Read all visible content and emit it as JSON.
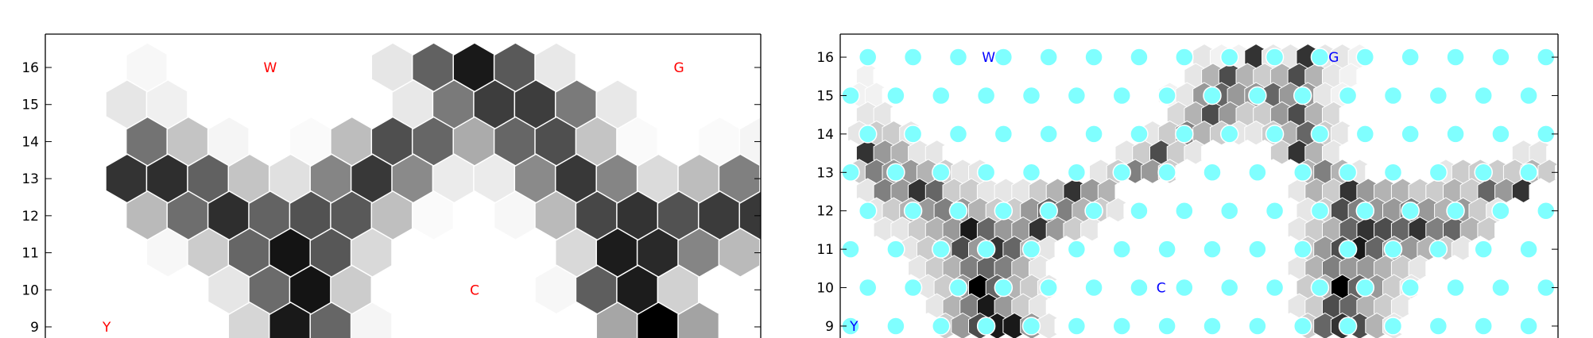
{
  "chart_data": [
    {
      "type": "heatmap",
      "title": "",
      "xlabel": "",
      "ylabel": "",
      "ylim": [
        8.4,
        16.9
      ],
      "y_ticks": [
        "9",
        "10",
        "11",
        "12",
        "13",
        "14",
        "15",
        "16"
      ],
      "grid": false,
      "colormap": "gray_r",
      "annotation_color": "#ff0000",
      "annotations": [
        {
          "text": "W",
          "x": 5.5,
          "y": 16
        },
        {
          "text": "G",
          "x": 15.5,
          "y": 16
        },
        {
          "text": "C",
          "x": 10.5,
          "y": 10
        },
        {
          "text": "Y",
          "x": 1.5,
          "y": 9
        }
      ],
      "x_start": 1,
      "x_step": 1,
      "rows": [
        {
          "y": 16,
          "x_offset": 0.5,
          "values": [
            0.0,
            0.03,
            0.0,
            0.0,
            0.0,
            0.0,
            0.0,
            0.1,
            0.62,
            0.9,
            0.65,
            0.09,
            0.0,
            0.0,
            0.0,
            0.0,
            0.0
          ]
        },
        {
          "y": 15,
          "x_offset": 0.0,
          "values": [
            0.0,
            0.1,
            0.06,
            0.0,
            0.0,
            0.0,
            0.0,
            0.0,
            0.09,
            0.52,
            0.76,
            0.76,
            0.52,
            0.09,
            0.0,
            0.0,
            0.0,
            0.0
          ]
        },
        {
          "y": 14,
          "x_offset": 0.5,
          "values": [
            0.0,
            0.55,
            0.23,
            0.04,
            0.0,
            0.02,
            0.26,
            0.69,
            0.6,
            0.33,
            0.6,
            0.69,
            0.23,
            0.02,
            0.0,
            0.02,
            0.04
          ]
        },
        {
          "y": 13,
          "x_offset": 0.0,
          "values": [
            0.0,
            0.8,
            0.82,
            0.62,
            0.23,
            0.12,
            0.48,
            0.78,
            0.46,
            0.08,
            0.08,
            0.46,
            0.78,
            0.48,
            0.14,
            0.26,
            0.5,
            0.0
          ]
        },
        {
          "y": 12,
          "x_offset": 0.5,
          "values": [
            0.0,
            0.27,
            0.57,
            0.82,
            0.61,
            0.68,
            0.65,
            0.25,
            0.02,
            0.0,
            0.03,
            0.27,
            0.72,
            0.8,
            0.68,
            0.77,
            0.78
          ]
        },
        {
          "y": 11,
          "x_offset": 0.0,
          "values": [
            0.0,
            0.0,
            0.03,
            0.2,
            0.6,
            0.92,
            0.66,
            0.15,
            0.0,
            0.0,
            0.0,
            0.0,
            0.15,
            0.89,
            0.84,
            0.48,
            0.27,
            0.0
          ]
        },
        {
          "y": 10,
          "x_offset": 0.5,
          "values": [
            0.0,
            0.0,
            0.0,
            0.1,
            0.58,
            0.92,
            0.2,
            0.0,
            0.0,
            0.0,
            0.0,
            0.03,
            0.63,
            0.89,
            0.18,
            0.0,
            0.0
          ]
        },
        {
          "y": 9,
          "x_offset": 0.0,
          "values": [
            0.0,
            0.0,
            0.0,
            0.0,
            0.16,
            0.9,
            0.6,
            0.04,
            0.0,
            0.0,
            0.0,
            0.0,
            0.0,
            0.35,
            1.0,
            0.36,
            0.0,
            0.0
          ]
        }
      ]
    },
    {
      "type": "heatmap",
      "title": "",
      "xlabel": "",
      "ylabel": "",
      "ylim": [
        8.4,
        16.6
      ],
      "y_ticks": [
        "9",
        "10",
        "11",
        "12",
        "13",
        "14",
        "15",
        "16"
      ],
      "grid": false,
      "colormap": "gray_r",
      "annotation_color": "#0000ff",
      "marker_color": "#7fffff",
      "annotations": [
        {
          "text": "W",
          "x": 4,
          "y": 16
        },
        {
          "text": "G",
          "x": 14,
          "y": 16
        },
        {
          "text": "C",
          "x": 9,
          "y": 10
        },
        {
          "text": "Y",
          "x": 0.1,
          "y": 9
        }
      ],
      "x_start": 0,
      "x_step": 0.5,
      "hex_rows_per_unit": 2,
      "rows": [
        {
          "y": 16.0,
          "x_offset": 0.25,
          "values": [
            0,
            0,
            0,
            0,
            0,
            0,
            0,
            0,
            0,
            0,
            0,
            0,
            0,
            0,
            0,
            0,
            0,
            0,
            0,
            0,
            0.1,
            0.05,
            0.05,
            0.8,
            0.1,
            0.1,
            0.8,
            0.1,
            0.1,
            0.05,
            0,
            0,
            0,
            0,
            0,
            0,
            0,
            0,
            0,
            0,
            0,
            0,
            0
          ]
        },
        {
          "y": 15.5,
          "x_offset": 0.0,
          "values": [
            0,
            0.05,
            0,
            0,
            0,
            0,
            0,
            0,
            0,
            0,
            0,
            0,
            0,
            0,
            0,
            0,
            0,
            0,
            0,
            0,
            0.1,
            0.3,
            0.7,
            0.3,
            0.2,
            0.3,
            0.7,
            0.3,
            0.1,
            0.05,
            0,
            0,
            0,
            0,
            0,
            0,
            0,
            0,
            0,
            0,
            0,
            0,
            0
          ]
        },
        {
          "y": 15.0,
          "x_offset": 0.25,
          "values": [
            0.05,
            0.05,
            0,
            0,
            0,
            0,
            0,
            0,
            0,
            0,
            0,
            0,
            0,
            0,
            0,
            0,
            0,
            0,
            0.05,
            0.1,
            0.4,
            0.6,
            0.4,
            0.4,
            0.6,
            0.4,
            0.4,
            0.1,
            0.05,
            0,
            0,
            0,
            0,
            0,
            0,
            0,
            0,
            0,
            0,
            0,
            0,
            0
          ]
        },
        {
          "y": 14.5,
          "x_offset": 0.0,
          "values": [
            0,
            0.1,
            0.1,
            0,
            0,
            0,
            0,
            0,
            0,
            0,
            0,
            0,
            0,
            0,
            0,
            0,
            0,
            0,
            0,
            0.15,
            0.3,
            0.7,
            0.4,
            0.2,
            0.2,
            0.4,
            0.7,
            0.3,
            0.15,
            0,
            0,
            0,
            0,
            0,
            0,
            0,
            0,
            0,
            0,
            0,
            0,
            0,
            0
          ]
        },
        {
          "y": 14.0,
          "x_offset": 0.25,
          "values": [
            0.1,
            0.2,
            0.2,
            0.1,
            0,
            0,
            0,
            0,
            0,
            0,
            0,
            0,
            0,
            0,
            0,
            0,
            0,
            0.1,
            0.2,
            0.5,
            0.3,
            0.2,
            0.1,
            0.1,
            0.2,
            0.3,
            0.6,
            0.2,
            0.1,
            0,
            0,
            0,
            0,
            0,
            0,
            0,
            0,
            0,
            0,
            0,
            0,
            0
          ]
        },
        {
          "y": 13.5,
          "x_offset": 0.0,
          "values": [
            0,
            0.8,
            0.4,
            0.3,
            0.1,
            0.1,
            0,
            0,
            0,
            0,
            0,
            0,
            0,
            0,
            0,
            0,
            0.1,
            0.2,
            0.7,
            0.2,
            0.1,
            0,
            0,
            0,
            0,
            0.2,
            0.8,
            0.3,
            0.1,
            0,
            0,
            0,
            0,
            0,
            0,
            0,
            0,
            0,
            0,
            0.1,
            0.1,
            0,
            0
          ]
        },
        {
          "y": 13.0,
          "x_offset": 0.25,
          "values": [
            0.2,
            0.5,
            0.4,
            0.4,
            0.3,
            0.2,
            0.1,
            0.1,
            0,
            0,
            0,
            0,
            0,
            0,
            0.1,
            0.2,
            0.5,
            0.4,
            0.2,
            0,
            0,
            0,
            0,
            0,
            0,
            0,
            0.3,
            0.5,
            0.3,
            0.1,
            0,
            0,
            0,
            0,
            0.1,
            0.2,
            0.2,
            0.2,
            0.2,
            0.3,
            0.2,
            0,
            0
          ]
        },
        {
          "y": 12.5,
          "x_offset": 0.0,
          "values": [
            0,
            0.1,
            0.5,
            0.4,
            0.8,
            0.6,
            0.2,
            0.2,
            0.1,
            0.1,
            0.1,
            0.2,
            0.3,
            0.8,
            0.4,
            0.3,
            0,
            0,
            0,
            0,
            0,
            0,
            0,
            0,
            0,
            0,
            0.1,
            0.3,
            0.2,
            0.8,
            0.4,
            0.3,
            0.3,
            0.2,
            0.2,
            0.3,
            0.2,
            0.6,
            0.4,
            0.8,
            0,
            0,
            0
          ]
        },
        {
          "y": 12.0,
          "x_offset": 0.25,
          "values": [
            0,
            0.1,
            0.2,
            0.3,
            0.4,
            0.5,
            0.4,
            0.3,
            0.2,
            0.2,
            0.4,
            0.6,
            0.5,
            0.3,
            0.2,
            0.1,
            0,
            0,
            0,
            0,
            0,
            0,
            0,
            0,
            0,
            0,
            0.1,
            0.2,
            0.7,
            0.5,
            0.4,
            0.4,
            0.5,
            0.4,
            0.3,
            0.4,
            0.2,
            0.1,
            0,
            0,
            0,
            0,
            0
          ]
        },
        {
          "y": 11.5,
          "x_offset": 0.0,
          "values": [
            0,
            0,
            0.1,
            0.1,
            0.2,
            0.3,
            0.4,
            0.9,
            0.6,
            0.4,
            0.4,
            0.8,
            0.4,
            0.2,
            0.1,
            0,
            0,
            0,
            0,
            0,
            0,
            0,
            0,
            0,
            0,
            0,
            0.1,
            0.2,
            0.3,
            0.6,
            0.8,
            0.7,
            0.6,
            0.8,
            0.5,
            0.6,
            0.3,
            0.2,
            0,
            0,
            0,
            0,
            0
          ]
        },
        {
          "y": 11.0,
          "x_offset": 0.25,
          "values": [
            0,
            0,
            0,
            0.1,
            0.2,
            0.3,
            0.7,
            0.4,
            0.8,
            0.6,
            0.3,
            0.1,
            0,
            0,
            0,
            0,
            0,
            0,
            0,
            0,
            0,
            0,
            0,
            0,
            0,
            0,
            0.2,
            0.4,
            0.7,
            0.9,
            0.6,
            0.4,
            0.4,
            0.3,
            0.2,
            0.1,
            0,
            0,
            0,
            0,
            0,
            0,
            0
          ]
        },
        {
          "y": 10.5,
          "x_offset": 0.0,
          "values": [
            0,
            0,
            0,
            0,
            0.1,
            0.2,
            0.3,
            0.5,
            0.6,
            0.5,
            0.3,
            0.1,
            0,
            0,
            0,
            0,
            0,
            0,
            0,
            0,
            0,
            0,
            0,
            0,
            0,
            0,
            0.1,
            0.3,
            0.5,
            0.4,
            0.4,
            0.3,
            0.2,
            0.1,
            0,
            0,
            0,
            0,
            0,
            0,
            0,
            0,
            0
          ]
        },
        {
          "y": 10.0,
          "x_offset": 0.25,
          "values": [
            0,
            0,
            0,
            0,
            0.1,
            0.2,
            0.4,
            1.0,
            0.6,
            0.3,
            0.2,
            0.1,
            0,
            0,
            0,
            0,
            0,
            0,
            0,
            0,
            0,
            0,
            0,
            0,
            0,
            0,
            0.2,
            0.3,
            1.0,
            0.6,
            0.4,
            0.2,
            0.1,
            0,
            0,
            0,
            0,
            0,
            0,
            0,
            0,
            0,
            0
          ]
        },
        {
          "y": 9.5,
          "x_offset": 0.0,
          "values": [
            0,
            0,
            0,
            0,
            0,
            0.1,
            0.3,
            0.5,
            0.9,
            0.4,
            0.2,
            0.1,
            0,
            0,
            0,
            0,
            0,
            0,
            0,
            0,
            0,
            0,
            0,
            0,
            0,
            0,
            0.1,
            0.2,
            0.7,
            0.6,
            0.3,
            0.2,
            0.1,
            0,
            0,
            0,
            0,
            0,
            0,
            0,
            0,
            0,
            0
          ]
        },
        {
          "y": 9.0,
          "x_offset": 0.25,
          "values": [
            0,
            0,
            0,
            0,
            0,
            0.2,
            0.4,
            0.7,
            0.9,
            0.9,
            0.4,
            0.1,
            0,
            0,
            0,
            0,
            0,
            0,
            0,
            0,
            0,
            0,
            0,
            0,
            0,
            0,
            0.2,
            0.6,
            0.8,
            0.7,
            0.3,
            0.1,
            0,
            0,
            0,
            0,
            0,
            0,
            0,
            0,
            0,
            0,
            0
          ]
        }
      ],
      "marker_rows": [
        {
          "y": 16,
          "x_offset": 0.5,
          "count": 16
        },
        {
          "y": 15,
          "x_offset": 0.0,
          "count": 16
        },
        {
          "y": 14,
          "x_offset": 0.5,
          "count": 16
        },
        {
          "y": 13,
          "x_offset": 0.0,
          "count": 16
        },
        {
          "y": 12,
          "x_offset": 0.5,
          "count": 16
        },
        {
          "y": 11,
          "x_offset": 0.0,
          "count": 16
        },
        {
          "y": 10,
          "x_offset": 0.5,
          "count": 16
        },
        {
          "y": 9,
          "x_offset": 0.0,
          "count": 16
        }
      ]
    }
  ]
}
